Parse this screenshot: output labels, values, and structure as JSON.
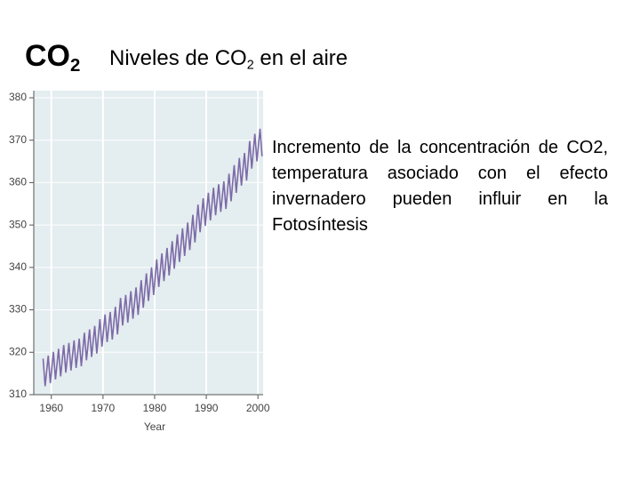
{
  "heading": {
    "main": "CO",
    "sub": "2"
  },
  "slide_title": {
    "before": "Niveles de CO",
    "sub": "2",
    "after": " en el aire"
  },
  "paragraph": "Incremento de la concentración de CO2,  temperatura asociado con el efecto invernadero pueden influir en la Fotosíntesis",
  "chart_data": {
    "type": "line",
    "x_label": "Year",
    "xlim": [
      1956.6,
      2001
    ],
    "ylim": [
      310,
      380
    ],
    "xticks": [
      1960,
      1970,
      1980,
      1990,
      2000
    ],
    "yticks": [
      310,
      320,
      330,
      340,
      350,
      360,
      370,
      380
    ],
    "grid": true,
    "series": [
      {
        "color": "#7d6aa8",
        "x": [
          1958.4,
          1958.8,
          1959.4,
          1959.8,
          1960.4,
          1960.8,
          1961.4,
          1961.8,
          1962.4,
          1962.8,
          1963.4,
          1963.8,
          1964.4,
          1964.8,
          1965.4,
          1965.8,
          1966.4,
          1966.8,
          1967.4,
          1967.8,
          1968.4,
          1968.8,
          1969.4,
          1969.8,
          1970.4,
          1970.8,
          1971.4,
          1971.8,
          1972.4,
          1972.8,
          1973.4,
          1973.8,
          1974.4,
          1974.8,
          1975.4,
          1975.8,
          1976.4,
          1976.8,
          1977.4,
          1977.8,
          1978.4,
          1978.8,
          1979.4,
          1979.8,
          1980.4,
          1980.8,
          1981.4,
          1981.8,
          1982.4,
          1982.8,
          1983.4,
          1983.8,
          1984.4,
          1984.8,
          1985.4,
          1985.8,
          1986.4,
          1986.8,
          1987.4,
          1987.8,
          1988.4,
          1988.8,
          1989.4,
          1989.8,
          1990.4,
          1990.8,
          1991.4,
          1991.8,
          1992.4,
          1992.8,
          1993.4,
          1993.8,
          1994.4,
          1994.8,
          1995.4,
          1995.8,
          1996.4,
          1996.8,
          1997.4,
          1997.8,
          1998.4,
          1998.8,
          1999.4,
          1999.8,
          2000.4,
          2000.8
        ],
        "values": [
          318.5,
          312.0,
          319.2,
          312.7,
          320.1,
          313.6,
          320.8,
          314.3,
          321.7,
          315.2,
          322.2,
          315.7,
          322.8,
          316.3,
          323.2,
          316.7,
          324.6,
          318.1,
          325.4,
          318.9,
          326.2,
          319.7,
          327.8,
          321.3,
          328.9,
          322.4,
          329.5,
          323.0,
          330.7,
          324.2,
          332.8,
          326.3,
          333.5,
          327.0,
          334.4,
          327.9,
          335.3,
          328.8,
          337.0,
          330.5,
          338.6,
          332.1,
          340.0,
          333.5,
          341.9,
          335.4,
          343.3,
          336.8,
          344.6,
          338.1,
          346.2,
          339.7,
          347.8,
          341.3,
          349.2,
          342.7,
          350.6,
          344.1,
          352.4,
          345.9,
          354.8,
          348.3,
          356.3,
          349.8,
          357.6,
          351.1,
          358.8,
          352.3,
          359.6,
          353.1,
          360.3,
          353.8,
          362.1,
          355.6,
          364.1,
          357.6,
          365.8,
          359.3,
          367.0,
          360.5,
          369.8,
          363.3,
          371.5,
          365.0,
          372.7,
          366.2
        ]
      }
    ]
  }
}
